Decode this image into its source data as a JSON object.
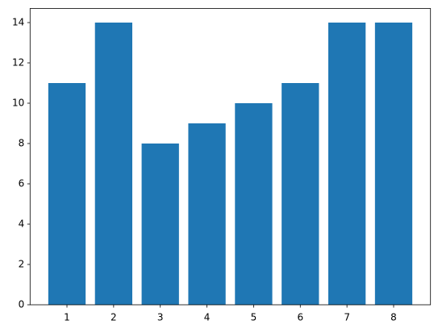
{
  "chart_data": {
    "type": "bar",
    "x": [
      1,
      2,
      3,
      4,
      5,
      6,
      7,
      8
    ],
    "values": [
      11,
      14,
      8,
      9,
      10,
      11,
      14,
      14
    ],
    "color": "#1f77b4",
    "xlim": [
      0.21,
      8.79
    ],
    "xticks": [
      1,
      2,
      3,
      4,
      5,
      6,
      7,
      8
    ],
    "ylim": [
      0,
      14.7
    ],
    "yticks": [
      0,
      2,
      4,
      6,
      8,
      10,
      12,
      14
    ],
    "grid": false
  }
}
